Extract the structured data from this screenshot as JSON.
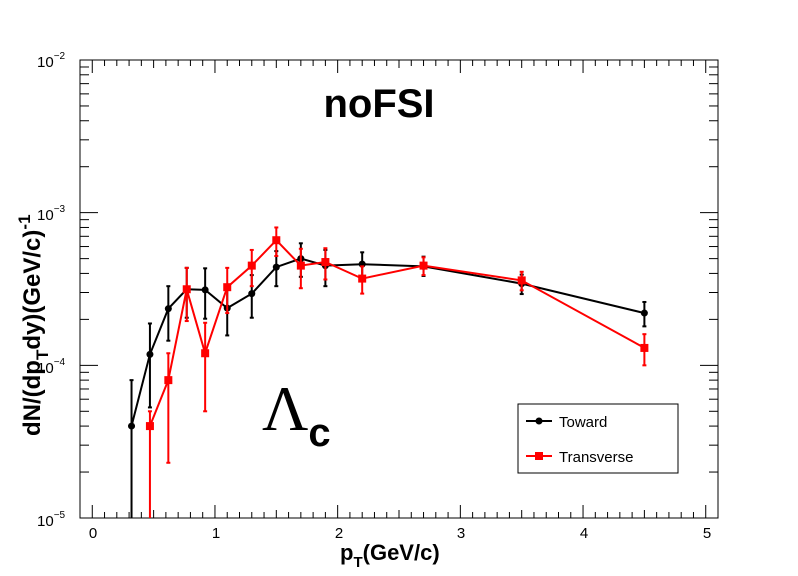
{
  "chart_data": {
    "type": "line",
    "title": "noFSI",
    "annotation": {
      "symbol": "Λ",
      "subscript": "c"
    },
    "xlabel": {
      "main": "p",
      "sub": "T",
      "rest": "(GeV/c)"
    },
    "ylabel": {
      "p1": "dN/(dp",
      "sub": "T",
      "p2": "dy)(GeV/c)",
      "sup": "-1"
    },
    "xlim": [
      -0.1,
      5.1
    ],
    "ylim": [
      1e-05,
      0.01
    ],
    "yscale": "log",
    "x_ticks": [
      "0",
      "1",
      "2",
      "3",
      "4",
      "5"
    ],
    "y_ticks": [
      {
        "base": "10",
        "exp": "−5"
      },
      {
        "base": "10",
        "exp": "−4"
      },
      {
        "base": "10",
        "exp": "−3"
      },
      {
        "base": "10",
        "exp": "−2"
      }
    ],
    "legend_position": "bottom-right",
    "series": [
      {
        "name": "Toward",
        "color": "#000000",
        "marker": "circle",
        "x": [
          0.32,
          0.47,
          0.62,
          0.77,
          0.92,
          1.1,
          1.3,
          1.5,
          1.7,
          1.9,
          2.2,
          2.7,
          3.5,
          4.5
        ],
        "y": [
          4e-05,
          0.000118,
          0.000235,
          0.000315,
          0.000312,
          0.000237,
          0.000295,
          0.00044,
          0.0005,
          0.00045,
          0.00046,
          0.000445,
          0.000343,
          0.00022
        ],
        "err_low": [
          4e-05,
          6.5e-05,
          9e-05,
          0.00011,
          0.00011,
          8e-05,
          9e-05,
          0.00011,
          0.00012,
          0.00012,
          9e-05,
          6e-05,
          5e-05,
          4e-05
        ],
        "err_high": [
          4e-05,
          7e-05,
          9.5e-05,
          0.00012,
          0.00012,
          8.5e-05,
          9.5e-05,
          0.00012,
          0.00013,
          0.00012,
          9e-05,
          7e-05,
          5e-05,
          4e-05
        ]
      },
      {
        "name": "Transverse",
        "color": "#ff0000",
        "marker": "square",
        "x": [
          0.47,
          0.62,
          0.77,
          0.92,
          1.1,
          1.3,
          1.5,
          1.7,
          1.9,
          2.2,
          2.7,
          3.5,
          4.5
        ],
        "y": [
          4e-05,
          8e-05,
          0.000315,
          0.00012,
          0.000325,
          0.00045,
          0.00066,
          0.00045,
          0.000475,
          0.00037,
          0.00045,
          0.00036,
          0.00013
        ],
        "err_low": [
          3.6e-05,
          5.7e-05,
          0.00012,
          7e-05,
          0.000105,
          0.00012,
          0.00014,
          0.00013,
          0.00011,
          7.5e-05,
          6e-05,
          5e-05,
          3e-05
        ],
        "err_high": [
          1e-05,
          4e-05,
          0.00012,
          7e-05,
          0.00011,
          0.00012,
          0.00014,
          0.00013,
          0.00011,
          7.5e-05,
          6e-05,
          5e-05,
          3e-05
        ]
      }
    ]
  }
}
